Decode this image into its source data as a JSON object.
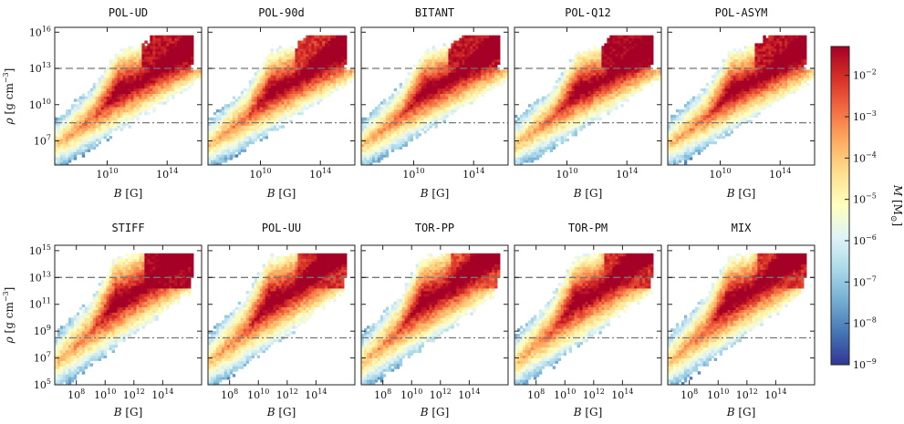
{
  "chart_data": {
    "type": "heatmap",
    "figure": "Mass distribution over magnetic field strength and density for ten simulation models",
    "colorbar": {
      "label": "M [M⊙]",
      "label_prefix": "M",
      "label_unit": "[M",
      "label_unit_end": "]",
      "label_symbol": "⊙",
      "scale": "log",
      "range": [
        1e-09,
        0.05
      ],
      "ticks": [
        {
          "exp": -9,
          "text": "10",
          "sup": "−9"
        },
        {
          "exp": -8,
          "text": "10",
          "sup": "−8"
        },
        {
          "exp": -7,
          "text": "10",
          "sup": "−7"
        },
        {
          "exp": -6,
          "text": "10",
          "sup": "−6"
        },
        {
          "exp": -5,
          "text": "10",
          "sup": "−5"
        },
        {
          "exp": -4,
          "text": "10",
          "sup": "−4"
        },
        {
          "exp": -3,
          "text": "10",
          "sup": "−3"
        },
        {
          "exp": -2,
          "text": "10",
          "sup": "−2"
        }
      ],
      "colormap": [
        "#313695",
        "#4575b4",
        "#74add1",
        "#abd9e9",
        "#e0f3f8",
        "#ffffbf",
        "#fee090",
        "#fdae61",
        "#f46d43",
        "#d73027",
        "#a50026"
      ]
    },
    "xlabel": "B [G]",
    "xlabel_var": "B",
    "xlabel_unit": "[G]",
    "ylabel": "ρ [g cm−3]",
    "ylabel_var": "ρ",
    "ylabel_unit": "[g cm",
    "ylabel_sup": "−3",
    "ylabel_end": "]",
    "reference_lines": [
      {
        "rho_log10": 13.0,
        "style": "dashed"
      },
      {
        "rho_log10": 8.5,
        "style": "dashdot"
      }
    ],
    "rows": [
      {
        "xlim_log10": [
          6.5,
          16.3
        ],
        "ylim_log10": [
          5.0,
          16.4
        ],
        "x_ticks": [
          {
            "exp": 10,
            "text": "10",
            "sup": "10"
          },
          {
            "exp": 14,
            "text": "10",
            "sup": "14"
          }
        ],
        "y_ticks": [
          {
            "exp": 7,
            "text": "10",
            "sup": "7"
          },
          {
            "exp": 10,
            "text": "10",
            "sup": "10"
          },
          {
            "exp": 13,
            "text": "10",
            "sup": "13"
          },
          {
            "exp": 16,
            "text": "10",
            "sup": "16"
          }
        ],
        "panels": [
          {
            "title": "POL-UD",
            "seed": 11,
            "red_top": 0.95
          },
          {
            "title": "POL-90d",
            "seed": 23,
            "red_top": 0.9
          },
          {
            "title": "BITANT",
            "seed": 37,
            "red_top": 0.95
          },
          {
            "title": "POL-Q12",
            "seed": 41,
            "red_top": 1.0
          },
          {
            "title": "POL-ASYM",
            "seed": 53,
            "red_top": 0.95
          }
        ]
      },
      {
        "xlim_log10": [
          6.5,
          16.7
        ],
        "ylim_log10": [
          5.0,
          15.4
        ],
        "x_ticks": [
          {
            "exp": 8,
            "text": "10",
            "sup": "8"
          },
          {
            "exp": 10,
            "text": "10",
            "sup": "10"
          },
          {
            "exp": 12,
            "text": "10",
            "sup": "12"
          },
          {
            "exp": 14,
            "text": "10",
            "sup": "14"
          }
        ],
        "y_ticks": [
          {
            "exp": 5,
            "text": "10",
            "sup": "5"
          },
          {
            "exp": 7,
            "text": "10",
            "sup": "7"
          },
          {
            "exp": 9,
            "text": "10",
            "sup": "9"
          },
          {
            "exp": 11,
            "text": "10",
            "sup": "11"
          },
          {
            "exp": 13,
            "text": "10",
            "sup": "13"
          },
          {
            "exp": 15,
            "text": "10",
            "sup": "15"
          }
        ],
        "panels": [
          {
            "title": "STIFF",
            "seed": 67,
            "red_top": 1.0
          },
          {
            "title": "POL-UU",
            "seed": 71,
            "red_top": 0.9
          },
          {
            "title": "TOR-PP",
            "seed": 83,
            "red_top": 0.85
          },
          {
            "title": "TOR-PM",
            "seed": 97,
            "red_top": 0.9
          },
          {
            "title": "MIX",
            "seed": 101,
            "red_top": 0.9
          }
        ]
      }
    ]
  }
}
